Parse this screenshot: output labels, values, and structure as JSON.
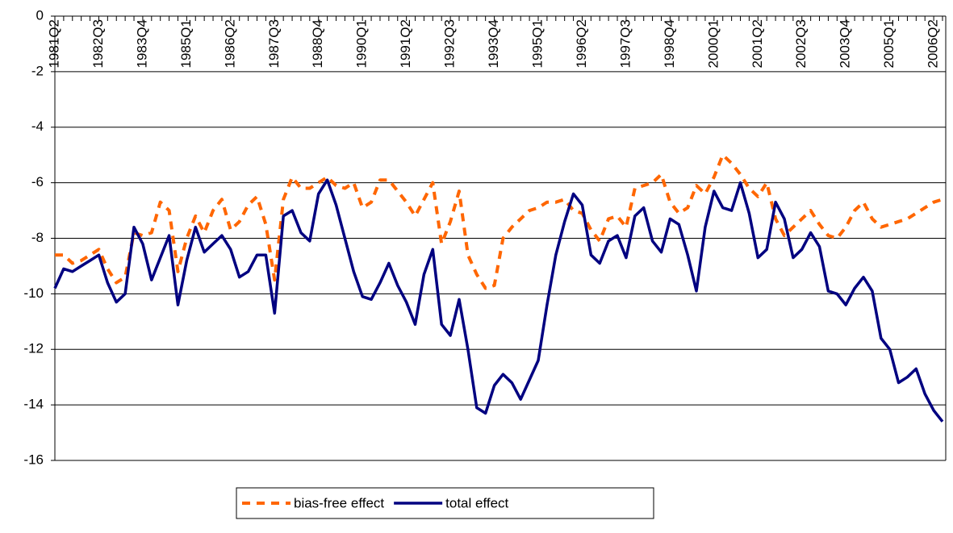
{
  "chart_data": {
    "type": "line",
    "categories": [
      "1981Q2",
      null,
      null,
      null,
      null,
      "1982Q3",
      null,
      null,
      null,
      null,
      "1983Q4",
      null,
      null,
      null,
      null,
      "1985Q1",
      null,
      null,
      null,
      null,
      "1986Q2",
      null,
      null,
      null,
      null,
      "1987Q3",
      null,
      null,
      null,
      null,
      "1988Q4",
      null,
      null,
      null,
      null,
      "1990Q1",
      null,
      null,
      null,
      null,
      "1991Q2",
      null,
      null,
      null,
      null,
      "1992Q3",
      null,
      null,
      null,
      null,
      "1993Q4",
      null,
      null,
      null,
      null,
      "1995Q1",
      null,
      null,
      null,
      null,
      "1996Q2",
      null,
      null,
      null,
      null,
      "1997Q3",
      null,
      null,
      null,
      null,
      "1998Q4",
      null,
      null,
      null,
      null,
      "2000Q1",
      null,
      null,
      null,
      null,
      "2001Q2",
      null,
      null,
      null,
      null,
      "2002Q3",
      null,
      null,
      null,
      null,
      "2003Q4",
      null,
      null,
      null,
      null,
      "2005Q1",
      null,
      null,
      null,
      null,
      "2006Q2",
      null
    ],
    "series": [
      {
        "name": "bias-free effect",
        "color": "#ff6600",
        "dashed": true,
        "values": [
          -8.6,
          -8.6,
          -8.9,
          -8.8,
          -8.6,
          -8.4,
          -9.1,
          -9.6,
          -9.4,
          -7.8,
          -7.9,
          -7.8,
          -6.7,
          -7.0,
          -9.2,
          -8.0,
          -7.2,
          -7.8,
          -7.0,
          -6.6,
          -7.7,
          -7.4,
          -6.8,
          -6.5,
          -7.5,
          -9.5,
          -6.6,
          -5.8,
          -6.2,
          -6.2,
          -6.0,
          -5.8,
          -6.1,
          -6.2,
          -6.0,
          -6.9,
          -6.7,
          -5.9,
          -5.9,
          -6.3,
          -6.7,
          -7.2,
          -6.6,
          -6.0,
          -8.2,
          -7.4,
          -6.3,
          -8.6,
          -9.3,
          -9.8,
          -9.7,
          -8.0,
          -7.6,
          -7.3,
          -7.0,
          -6.9,
          -6.7,
          -6.7,
          -6.6,
          -7.0,
          -7.1,
          -7.7,
          -8.1,
          -7.3,
          -7.2,
          -7.6,
          -6.2,
          -6.1,
          -6.0,
          -5.7,
          -6.7,
          -7.1,
          -6.9,
          -6.1,
          -6.4,
          -5.8,
          -5.0,
          -5.3,
          -5.7,
          -6.2,
          -6.5,
          -6.0,
          -7.3,
          -7.9,
          -7.6,
          -7.3,
          -7.0,
          -7.5,
          -7.9,
          -8.0,
          -7.6,
          -7.0,
          -6.7,
          -7.3,
          -7.6,
          -7.5,
          -7.4,
          -7.3,
          -7.1,
          -6.9,
          -6.7,
          -6.6
        ]
      },
      {
        "name": "total effect",
        "color": "#000080",
        "dashed": false,
        "values": [
          -9.8,
          -9.1,
          -9.2,
          -9.0,
          -8.8,
          -8.6,
          -9.6,
          -10.3,
          -10.0,
          -7.6,
          -8.2,
          -9.5,
          -8.7,
          -7.9,
          -10.4,
          -8.8,
          -7.6,
          -8.5,
          -8.2,
          -7.9,
          -8.4,
          -9.4,
          -9.2,
          -8.6,
          -8.6,
          -10.7,
          -7.2,
          -7.0,
          -7.8,
          -8.1,
          -6.4,
          -5.9,
          -6.8,
          -8.0,
          -9.2,
          -10.1,
          -10.2,
          -9.6,
          -8.9,
          -9.7,
          -10.3,
          -11.1,
          -9.3,
          -8.4,
          -11.1,
          -11.5,
          -10.2,
          -12.0,
          -14.1,
          -14.3,
          -13.3,
          -12.9,
          -13.2,
          -13.8,
          -13.1,
          -12.4,
          -10.4,
          -8.6,
          -7.4,
          -6.4,
          -6.8,
          -8.6,
          -8.9,
          -8.1,
          -7.9,
          -8.7,
          -7.2,
          -6.9,
          -8.1,
          -8.5,
          -7.3,
          -7.5,
          -8.6,
          -9.9,
          -7.6,
          -6.3,
          -6.9,
          -7.0,
          -6.0,
          -7.1,
          -8.7,
          -8.4,
          -6.7,
          -7.3,
          -8.7,
          -8.4,
          -7.8,
          -8.3,
          -9.9,
          -10.0,
          -10.4,
          -9.8,
          -9.4,
          -9.9,
          -11.6,
          -12.0,
          -13.2,
          -13.0,
          -12.7,
          -13.6,
          -14.2,
          -14.6
        ]
      }
    ],
    "ylim": [
      -16,
      0
    ],
    "yticks": [
      -16,
      -14,
      -12,
      -10,
      -8,
      -6,
      -4,
      -2,
      0
    ],
    "grid": true,
    "legend": "bottom"
  }
}
